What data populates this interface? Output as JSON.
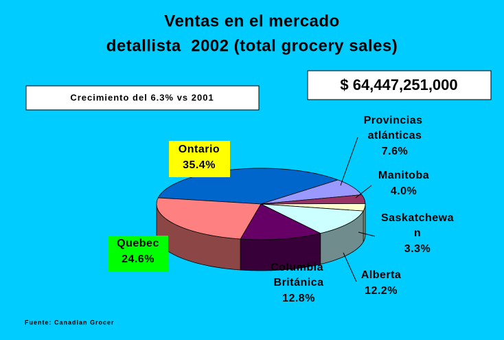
{
  "chart_data": {
    "type": "pie",
    "title": [
      "Ventas en el mercado",
      "detallista  2002 (total grocery sales)"
    ],
    "annotations": [
      "Crecimiento del 6.3% vs 2001",
      "$ 64,447,251,000"
    ],
    "source": "Fuente: Canadian Grocer",
    "categories": [
      "Ontario",
      "Provincias atlánticas",
      "Manitoba",
      "Saskatchewan",
      "Alberta",
      "Columbia Británica",
      "Quebec"
    ],
    "values": [
      35.4,
      7.6,
      4.0,
      3.3,
      12.2,
      12.8,
      24.6
    ],
    "value_labels": [
      "35.4%",
      "7.6%",
      "4.0%",
      "3.3%",
      "12.2%",
      "12.8%",
      "24.6%"
    ],
    "colors": [
      "#0066cc",
      "#9999ff",
      "#993366",
      "#ffffcc",
      "#ccffff",
      "#660066",
      "#ff8080"
    ]
  }
}
